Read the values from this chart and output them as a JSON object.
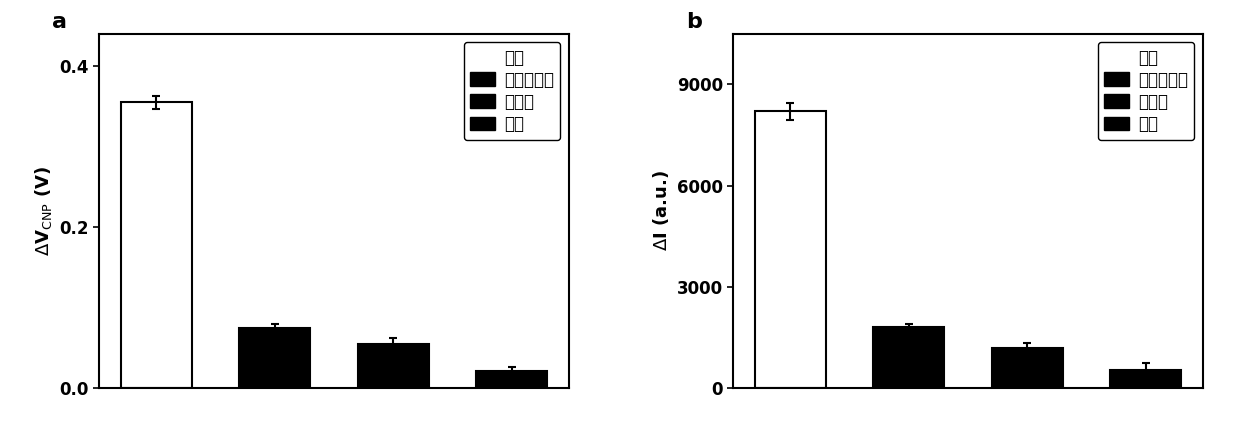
{
  "panel_a": {
    "label": "a",
    "values": [
      0.355,
      0.075,
      0.055,
      0.022
    ],
    "errors": [
      0.008,
      0.005,
      0.007,
      0.004
    ],
    "colors": [
      "white",
      "black",
      "black",
      "black"
    ],
    "edgecolors": [
      "black",
      "black",
      "black",
      "black"
    ],
    "ylim": [
      0,
      0.44
    ],
    "yticks": [
      0,
      0.2,
      0.4
    ],
    "legend_labels": [
      "互补",
      "单碎基错配",
      "非互补",
      "空白"
    ],
    "legend_colors": [
      "none",
      "black",
      "black",
      "black"
    ]
  },
  "panel_b": {
    "label": "b",
    "values": [
      8200,
      1800,
      1200,
      550
    ],
    "errors": [
      250,
      100,
      150,
      200
    ],
    "colors": [
      "white",
      "black",
      "black",
      "black"
    ],
    "edgecolors": [
      "black",
      "black",
      "black",
      "black"
    ],
    "ylim": [
      0,
      10500
    ],
    "yticks": [
      0,
      3000,
      6000,
      9000
    ],
    "legend_labels": [
      "互补",
      "单碎基错配",
      "非互补",
      "空白"
    ],
    "legend_colors": [
      "none",
      "black",
      "black",
      "black"
    ]
  },
  "background_color": "white",
  "bar_width": 0.6,
  "fontsize_label": 13,
  "fontsize_tick": 12,
  "fontsize_legend": 12,
  "fontsize_panel_label": 16
}
